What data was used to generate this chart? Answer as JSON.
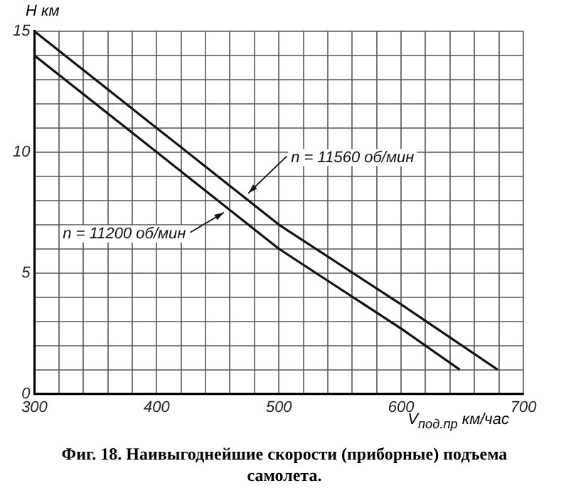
{
  "chart_data": {
    "type": "line",
    "xlabel": "V$_{под.пр}$ км/час",
    "ylabel": "H км",
    "series": [
      {
        "name": null,
        "color": "#111111",
        "x": [
          300,
          400,
          500,
          600,
          679
        ],
        "values": [
          15,
          11,
          7,
          3.7,
          1.0
        ]
      },
      {
        "name": null,
        "color": "#111111",
        "x": [
          300,
          400,
          500,
          600,
          648
        ],
        "values": [
          14,
          10,
          6,
          2.7,
          1.0
        ]
      }
    ],
    "xlim": [
      300,
      700
    ],
    "ylim": [
      0,
      15
    ],
    "xticks": [
      300,
      {
        "value": 320,
        "label": null
      },
      {
        "value": 340,
        "label": null
      },
      {
        "value": 360,
        "label": null
      },
      {
        "value": 380,
        "label": null
      },
      400,
      {
        "value": 420,
        "label": null
      },
      {
        "value": 440,
        "label": null
      },
      {
        "value": 460,
        "label": null
      },
      {
        "value": 480,
        "label": null
      },
      500,
      {
        "value": 520,
        "label": null
      },
      {
        "value": 540,
        "label": null
      },
      {
        "value": 560,
        "label": null
      },
      {
        "value": 580,
        "label": null
      },
      600,
      {
        "value": 620,
        "label": null
      },
      {
        "value": 640,
        "label": null
      },
      {
        "value": 660,
        "label": null
      },
      {
        "value": 680,
        "label": null
      },
      700
    ],
    "yticks": [
      0,
      {
        "value": 1,
        "label": null
      },
      {
        "value": 2,
        "label": null
      },
      {
        "value": 3,
        "label": null
      },
      {
        "value": 4,
        "label": null
      },
      5,
      {
        "value": 6,
        "label": null
      },
      {
        "value": 7,
        "label": null
      },
      {
        "value": 8,
        "label": null
      },
      {
        "value": 9,
        "label": null
      },
      10,
      {
        "value": 11,
        "label": null
      },
      {
        "value": 12,
        "label": null
      },
      {
        "value": 13,
        "label": null
      },
      {
        "value": 14,
        "label": null
      },
      15
    ],
    "grid": true,
    "legend": false,
    "marker": "none",
    "line_style": "solid",
    "annotations": [
      {
        "text": "n = 11560 об/мин",
        "x": 475,
        "y": 8.3
      },
      {
        "text": "n = 11200 об/мин",
        "x": 455,
        "y": 7.5
      },
      "Фиг. 18. Наивыгоднейшие скорости (приборные) подъема самолета."
    ]
  }
}
